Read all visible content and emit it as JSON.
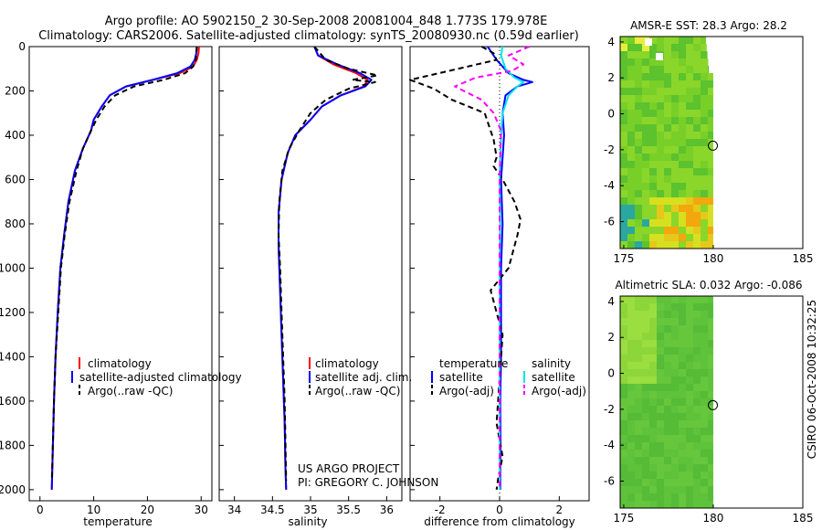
{
  "figure": {
    "title_line1": "Argo profile: AO 5902150_2 30-Sep-2008 20081004_848 1.773S 179.978E",
    "title_line2": "Climatology: CARS2006. Satellite-adjusted climatology: synTS_20080930.nc (0.59d earlier)",
    "footer_project": "US ARGO PROJECT",
    "footer_pi": "PI: GREGORY C. JOHNSON",
    "side_stamp": "CSIRO 06-Oct-2008 10:32:25"
  },
  "colors": {
    "climatology": "#ff0000",
    "satellite": "#0000ff",
    "argo": "#000000",
    "salinity_satellite": "#00e5e5",
    "salinity_argo": "#ff00ff"
  },
  "chart_data": [
    {
      "id": "temperature",
      "type": "line",
      "xlabel": "temperature",
      "xlim": [
        -2,
        32
      ],
      "ylim": [
        2050,
        0
      ],
      "xticks": [
        0,
        10,
        20,
        30
      ],
      "yticks": [
        0,
        200,
        400,
        600,
        800,
        1000,
        1200,
        1400,
        1600,
        1800,
        2000
      ],
      "legend": [
        "climatology",
        "satellite-adjusted climatology",
        "Argo(..raw -QC)"
      ],
      "series": [
        {
          "name": "climatology",
          "x": [
            29.6,
            29.5,
            29.2,
            28.5,
            26,
            21,
            16,
            13,
            11.5,
            10,
            9.5,
            8,
            6.5,
            5.3,
            4.5,
            3.8,
            3.3,
            2.9,
            2.6,
            2.4,
            2.2
          ],
          "y": [
            0,
            30,
            60,
            90,
            120,
            150,
            180,
            220,
            270,
            330,
            380,
            460,
            560,
            700,
            850,
            1000,
            1200,
            1400,
            1600,
            1800,
            2000
          ]
        },
        {
          "name": "satellite-adjusted climatology",
          "x": [
            29.2,
            29.1,
            28.8,
            28,
            25.5,
            21,
            16,
            13,
            11.5,
            10,
            9.5,
            8,
            6.5,
            5.3,
            4.5,
            3.8,
            3.3,
            2.9,
            2.6,
            2.4,
            2.2
          ],
          "y": [
            0,
            30,
            60,
            90,
            120,
            150,
            180,
            220,
            270,
            330,
            380,
            460,
            560,
            700,
            850,
            1000,
            1200,
            1400,
            1600,
            1800,
            2000
          ]
        },
        {
          "name": "Argo(..raw -QC)",
          "x": [
            29.2,
            29,
            28.5,
            27,
            23,
            17.5,
            14,
            12,
            10.5,
            9.5,
            8,
            6.8,
            5.5,
            4.6,
            3.9,
            3.4,
            2.9,
            2.6,
            2.4,
            2.2
          ],
          "y": [
            0,
            60,
            90,
            120,
            150,
            180,
            220,
            270,
            330,
            380,
            460,
            560,
            700,
            850,
            1000,
            1200,
            1400,
            1600,
            1800,
            1960
          ]
        }
      ]
    },
    {
      "id": "salinity",
      "type": "line",
      "xlabel": "salinity",
      "xlim": [
        33.8,
        36.2
      ],
      "ylim": [
        2050,
        0
      ],
      "xticks": [
        34,
        34.5,
        35,
        35.5,
        36
      ],
      "legend": [
        "climatology",
        "satellite adj. clim.",
        "Argo(..raw -QC)"
      ],
      "series": [
        {
          "name": "climatology",
          "x": [
            35.05,
            35.1,
            35.3,
            35.6,
            35.75,
            35.7,
            35.4,
            35.15,
            35,
            34.8,
            34.7,
            34.62,
            34.58,
            34.58,
            34.6,
            34.62,
            34.64,
            34.66,
            34.67,
            34.68
          ],
          "y": [
            0,
            40,
            80,
            120,
            150,
            180,
            220,
            270,
            330,
            400,
            480,
            600,
            750,
            900,
            1100,
            1300,
            1500,
            1700,
            1900,
            2000
          ]
        },
        {
          "name": "satellite adj. clim.",
          "x": [
            35.05,
            35.1,
            35.35,
            35.65,
            35.8,
            35.72,
            35.4,
            35.15,
            35,
            34.8,
            34.7,
            34.62,
            34.58,
            34.58,
            34.6,
            34.62,
            34.64,
            34.66,
            34.67,
            34.68
          ],
          "y": [
            0,
            40,
            80,
            120,
            150,
            180,
            220,
            270,
            330,
            400,
            480,
            600,
            750,
            900,
            1100,
            1300,
            1500,
            1700,
            1900,
            2000
          ]
        },
        {
          "name": "Argo(..raw -QC)",
          "x": [
            35.05,
            35.2,
            35.5,
            35.88,
            35.55,
            35.85,
            35.5,
            35.2,
            35,
            34.85,
            34.72,
            34.63,
            34.59,
            34.58,
            34.6,
            34.62,
            34.64,
            34.66,
            34.68
          ],
          "y": [
            0,
            60,
            100,
            130,
            150,
            160,
            190,
            240,
            300,
            380,
            460,
            560,
            700,
            850,
            1000,
            1200,
            1400,
            1600,
            1960
          ]
        }
      ]
    },
    {
      "id": "difference",
      "type": "line",
      "xlabel": "difference from climatology",
      "xlim": [
        -3,
        3
      ],
      "ylim": [
        2050,
        0
      ],
      "xticks": [
        -2,
        0,
        2
      ],
      "legend": [
        "temperature",
        "satellite",
        "Argo(-adj)",
        "salinity",
        "satellite",
        "Argo(-adj)"
      ],
      "series": [
        {
          "name": "temperature satellite",
          "x": [
            -0.4,
            -0.3,
            -0.1,
            0.3,
            0.8,
            1.1,
            0.6,
            0.2,
            0.1,
            0.15,
            0.1,
            0.05,
            0.1,
            0.05,
            0.05,
            0.05,
            0.02,
            0.03,
            0.02,
            0.02
          ],
          "y": [
            0,
            20,
            60,
            120,
            150,
            160,
            180,
            220,
            300,
            400,
            500,
            600,
            800,
            1000,
            1200,
            1400,
            1600,
            1800,
            1900,
            2000
          ]
        },
        {
          "name": "temperature Argo(-adj)",
          "x": [
            -0.6,
            -0.2,
            -0.1,
            -3,
            -2.2,
            -1.6,
            -0.5,
            -0.3,
            -0.2,
            -0.1,
            -0.2,
            -0.1,
            0.1,
            0.3,
            0.5,
            0.7,
            0.6,
            0.5,
            0.3,
            -0.3,
            0.1,
            0,
            -0.1,
            0.1,
            -0.05,
            -0.1
          ],
          "y": [
            0,
            30,
            60,
            150,
            190,
            240,
            300,
            380,
            420,
            500,
            540,
            560,
            600,
            650,
            700,
            780,
            850,
            900,
            1000,
            1100,
            1300,
            1500,
            1700,
            1850,
            1950,
            2000
          ]
        },
        {
          "name": "salinity satellite",
          "x": [
            0.1,
            0.05,
            0.2,
            0.5,
            0.8,
            0.6,
            0.3,
            0.1,
            0.05,
            0.02,
            0,
            0.02,
            0,
            0,
            0,
            0
          ],
          "y": [
            0,
            40,
            100,
            140,
            160,
            180,
            220,
            300,
            400,
            500,
            600,
            800,
            1000,
            1400,
            1800,
            2000
          ]
        },
        {
          "name": "salinity Argo(-adj)",
          "x": [
            1,
            0.3,
            0.8,
            0.4,
            -0.8,
            -1.5,
            -0.6,
            -0.2,
            0.05,
            0,
            0,
            0
          ],
          "y": [
            0,
            40,
            80,
            110,
            140,
            180,
            240,
            300,
            380,
            600,
            1000,
            2000
          ]
        }
      ]
    },
    {
      "id": "sst_map",
      "type": "heatmap",
      "title": "AMSR-E SST: 28.3 Argo: 28.2",
      "xlim": [
        174.8,
        185
      ],
      "ylim": [
        -7.5,
        4.3
      ],
      "xticks": [
        175,
        180,
        185
      ],
      "yticks": [
        4,
        2,
        0,
        -2,
        -4,
        -6
      ],
      "argo_position": {
        "lon": 179.978,
        "lat": -1.773
      }
    },
    {
      "id": "sla_map",
      "type": "heatmap",
      "title": "Altimetric SLA: 0.032 Argo: -0.086",
      "xlim": [
        174.8,
        185
      ],
      "ylim": [
        -7.5,
        4.3
      ],
      "xticks": [
        175,
        180,
        185
      ],
      "yticks": [
        4,
        2,
        0,
        -2,
        -4,
        -6
      ],
      "argo_position": {
        "lon": 179.978,
        "lat": -1.773
      }
    }
  ]
}
